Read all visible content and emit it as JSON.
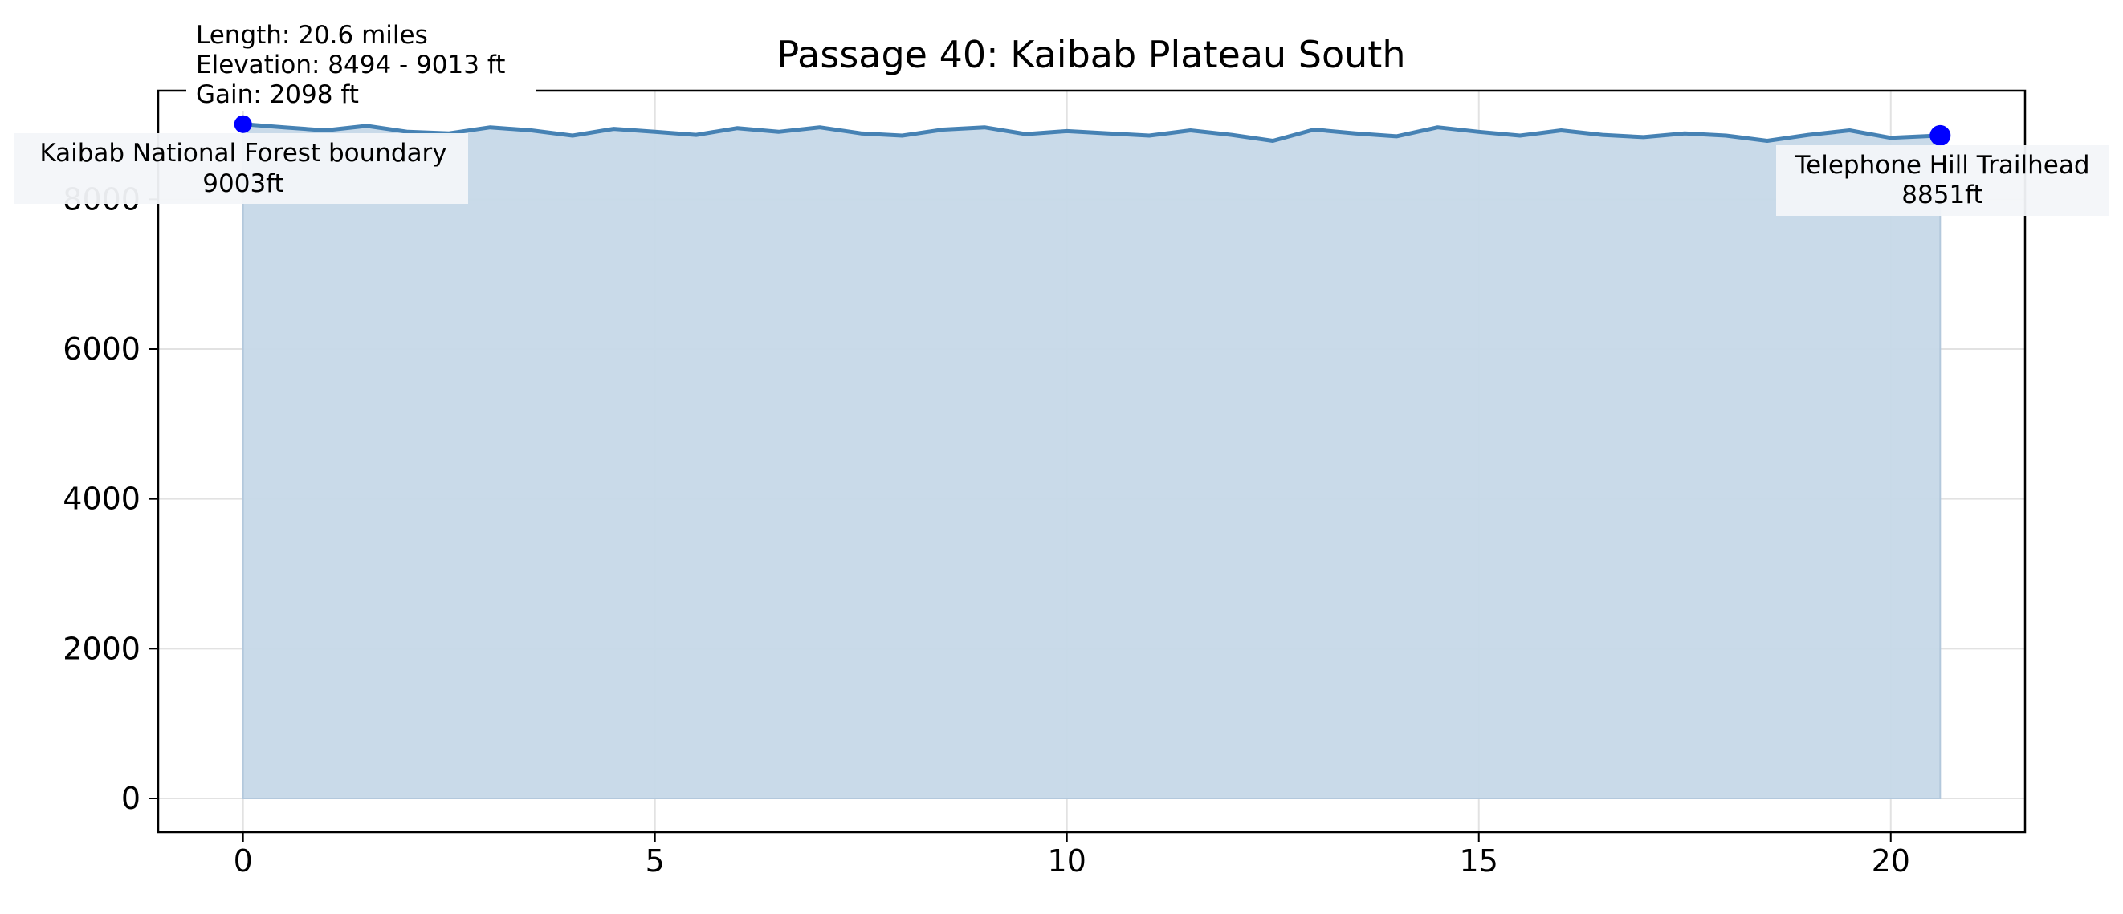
{
  "chart_data": {
    "type": "area",
    "title": "Passage 40: Kaibab Plateau South",
    "xlabel": "",
    "ylabel": "",
    "xlim": [
      -1.03,
      21.63
    ],
    "ylim": [
      -450,
      9450
    ],
    "xticks": [
      0,
      5,
      10,
      15,
      20
    ],
    "yticks": [
      0,
      2000,
      4000,
      6000,
      8000
    ],
    "grid": true,
    "series": [
      {
        "x": [
          0.0,
          0.5,
          1.0,
          1.5,
          2.0,
          2.5,
          3.0,
          3.5,
          4.0,
          4.5,
          5.0,
          5.5,
          6.0,
          6.5,
          7.0,
          7.5,
          8.0,
          8.5,
          9.0,
          9.5,
          10.0,
          10.5,
          11.0,
          11.5,
          12.0,
          12.5,
          13.0,
          13.5,
          14.0,
          14.5,
          15.0,
          15.5,
          16.0,
          16.5,
          17.0,
          17.5,
          18.0,
          18.5,
          19.0,
          19.5,
          20.0,
          20.6
        ],
        "values": [
          9003,
          8960,
          8920,
          8980,
          8900,
          8880,
          8960,
          8920,
          8850,
          8940,
          8900,
          8860,
          8950,
          8900,
          8960,
          8880,
          8850,
          8930,
          8960,
          8870,
          8910,
          8880,
          8850,
          8920,
          8860,
          8780,
          8930,
          8880,
          8840,
          8960,
          8900,
          8850,
          8920,
          8860,
          8830,
          8880,
          8850,
          8780,
          8860,
          8920,
          8820,
          8851
        ]
      }
    ],
    "colors": {
      "line": "#4682b4",
      "fill": "#c6d8e8",
      "marker": "#0000ff"
    },
    "annotations": [
      {
        "label": "Kaibab National Forest boundary",
        "elev": "9003ft",
        "x": 0.0,
        "y": 9003
      },
      {
        "label": "Telephone Hill Trailhead",
        "elev": "8851ft",
        "x": 20.6,
        "y": 8851
      }
    ],
    "stats": {
      "length": "Length: 20.6 miles",
      "elevation": "Elevation: 8494 - 9013 ft",
      "gain": "Gain: 2098 ft"
    }
  }
}
